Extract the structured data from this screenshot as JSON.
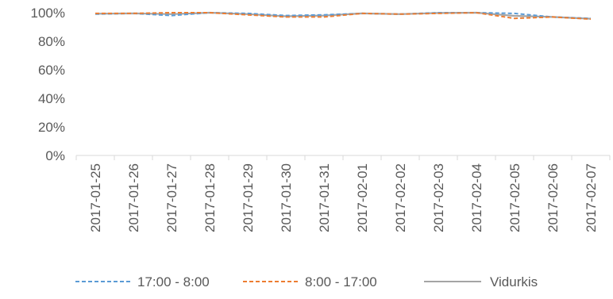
{
  "chart_data": {
    "type": "line",
    "x": [
      "2017-01-25",
      "2017-01-26",
      "2017-01-27",
      "2017-01-28",
      "2017-01-29",
      "2017-01-30",
      "2017-01-31",
      "2017-02-01",
      "2017-02-02",
      "2017-02-03",
      "2017-02-04",
      "2017-02-05",
      "2017-02-06",
      "2017-02-07"
    ],
    "ylim": [
      0,
      100
    ],
    "yticks": [
      "0%",
      "20%",
      "40%",
      "60%",
      "80%",
      "100%"
    ],
    "grid": false,
    "legend_placement": "bottom",
    "series": [
      {
        "name": "17:00 - 8:00",
        "style": "dashed",
        "color": "#5b9bd5",
        "values": [
          99,
          99.5,
          98,
          100,
          99.5,
          98,
          98.5,
          99.5,
          99,
          100,
          100,
          99.5,
          97,
          96
        ]
      },
      {
        "name": "8:00 - 17:00",
        "style": "dashed",
        "color": "#ed7d31",
        "values": [
          99.5,
          99.5,
          100,
          100,
          98.5,
          97,
          97,
          99.5,
          99,
          99.5,
          100,
          96,
          97,
          95.5
        ]
      },
      {
        "name": "Vidurkis",
        "style": "solid",
        "color": "#a5a5a5",
        "values": [
          99.3,
          99.5,
          99,
          100,
          99,
          97.5,
          98,
          99.5,
          99,
          99.8,
          100,
          97.8,
          97,
          95.8
        ]
      }
    ]
  }
}
